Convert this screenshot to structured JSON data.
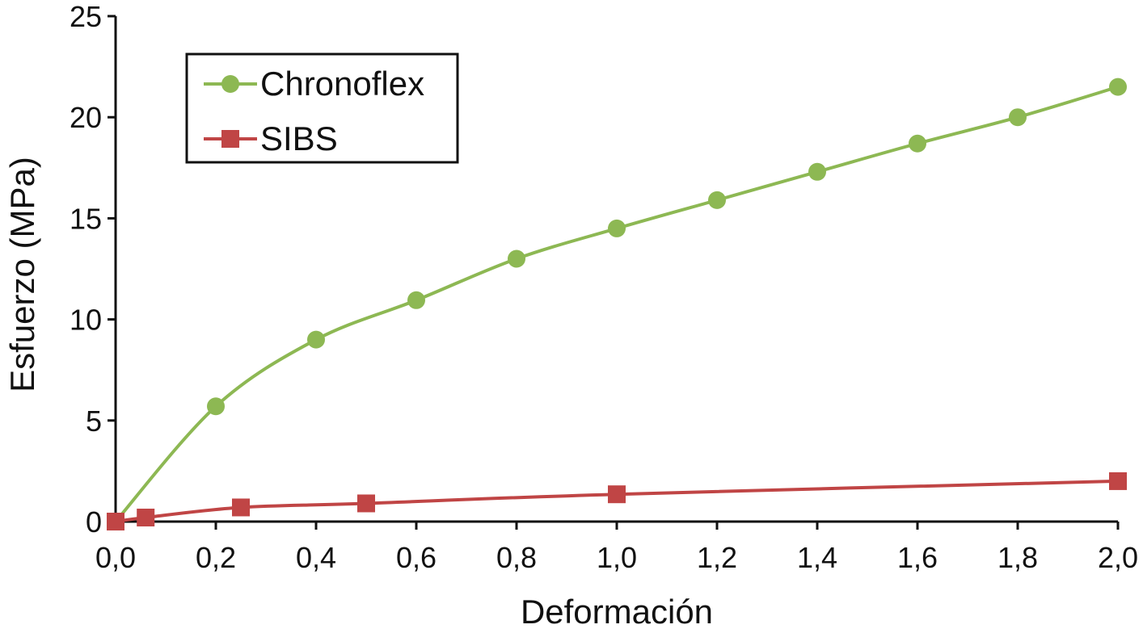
{
  "chart_data": {
    "type": "line",
    "title": "",
    "xlabel": "Deformación",
    "ylabel": "Esfuerzo (MPa)",
    "xlim": [
      0,
      2
    ],
    "ylim": [
      0,
      25
    ],
    "x_ticks": [
      0,
      0.2,
      0.4,
      0.6,
      0.8,
      1.0,
      1.2,
      1.4,
      1.6,
      1.8,
      2.0
    ],
    "x_tick_labels": [
      "0,0",
      "0,2",
      "0,4",
      "0,6",
      "0,8",
      "1,0",
      "1,2",
      "1,4",
      "1,6",
      "1,8",
      "2,0"
    ],
    "y_ticks": [
      0,
      5,
      10,
      15,
      20,
      25
    ],
    "y_tick_labels": [
      "0",
      "5",
      "10",
      "15",
      "20",
      "25"
    ],
    "grid": false,
    "legend_position": "top-left",
    "series": [
      {
        "name": "Chronoflex",
        "color": "#8db853",
        "marker": "circle",
        "x": [
          0,
          0.2,
          0.4,
          0.6,
          0.8,
          1.0,
          1.2,
          1.4,
          1.6,
          1.8,
          2.0
        ],
        "y": [
          0,
          5.7,
          9.0,
          10.95,
          13.0,
          14.5,
          15.9,
          17.3,
          18.7,
          20.0,
          21.5
        ]
      },
      {
        "name": "SIBS",
        "color": "#c04545",
        "marker": "square",
        "x": [
          0,
          0.06,
          0.25,
          0.5,
          1.0,
          2.0
        ],
        "y": [
          0,
          0.2,
          0.7,
          0.9,
          1.35,
          2.0
        ]
      }
    ]
  }
}
